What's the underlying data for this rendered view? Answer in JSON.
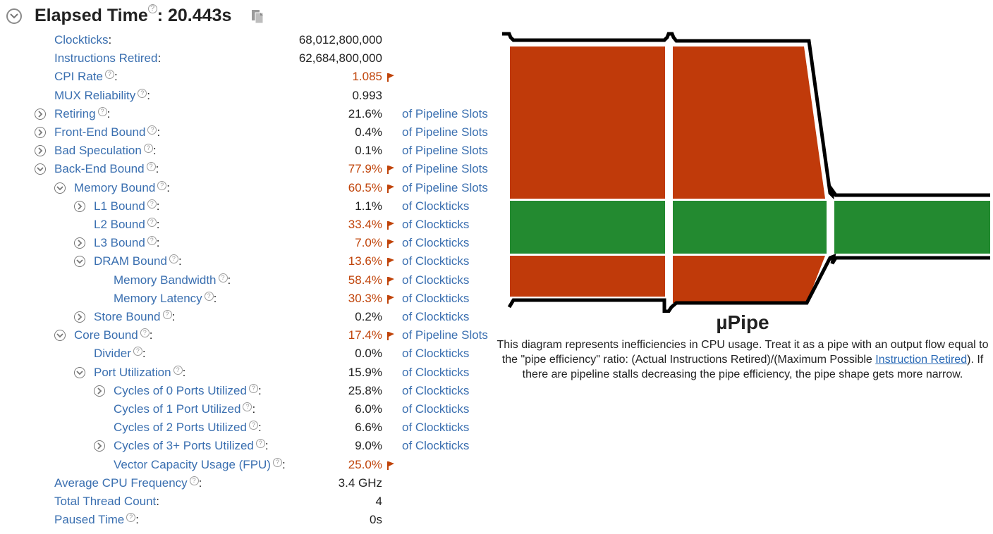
{
  "header": {
    "title": "Elapsed Time",
    "help_glyph": "?",
    "value": ": 20.443s"
  },
  "rows": [
    {
      "label": "Clockticks",
      "help": false,
      "value": "68,012,800,000",
      "flag": false,
      "unit": "",
      "indent": 0,
      "expander": "none"
    },
    {
      "label": "Instructions Retired",
      "help": false,
      "value": "62,684,800,000",
      "flag": false,
      "unit": "",
      "indent": 0,
      "expander": "none"
    },
    {
      "label": "CPI Rate",
      "help": true,
      "value": "1.085",
      "flag": true,
      "unit": "",
      "indent": 0,
      "expander": "none"
    },
    {
      "label": "MUX Reliability",
      "help": true,
      "value": "0.993",
      "flag": false,
      "unit": "",
      "indent": 0,
      "expander": "none"
    },
    {
      "label": "Retiring",
      "help": true,
      "value": "21.6%",
      "flag": false,
      "unit": "of Pipeline Slots",
      "indent": 0,
      "expander": "right"
    },
    {
      "label": "Front-End Bound",
      "help": true,
      "value": "0.4%",
      "flag": false,
      "unit": "of Pipeline Slots",
      "indent": 0,
      "expander": "right"
    },
    {
      "label": "Bad Speculation",
      "help": true,
      "value": "0.1%",
      "flag": false,
      "unit": "of Pipeline Slots",
      "indent": 0,
      "expander": "right"
    },
    {
      "label": "Back-End Bound",
      "help": true,
      "value": "77.9%",
      "flag": true,
      "unit": "of Pipeline Slots",
      "indent": 0,
      "expander": "down"
    },
    {
      "label": "Memory Bound",
      "help": true,
      "value": "60.5%",
      "flag": true,
      "unit": "of Pipeline Slots",
      "indent": 1,
      "expander": "down"
    },
    {
      "label": "L1 Bound",
      "help": true,
      "value": "1.1%",
      "flag": false,
      "unit": "of Clockticks",
      "indent": 2,
      "expander": "right"
    },
    {
      "label": "L2 Bound",
      "help": true,
      "value": "33.4%",
      "flag": true,
      "unit": "of Clockticks",
      "indent": 2,
      "expander": "none"
    },
    {
      "label": "L3 Bound",
      "help": true,
      "value": "7.0%",
      "flag": true,
      "unit": "of Clockticks",
      "indent": 2,
      "expander": "right"
    },
    {
      "label": "DRAM Bound",
      "help": true,
      "value": "13.6%",
      "flag": true,
      "unit": "of Clockticks",
      "indent": 2,
      "expander": "down"
    },
    {
      "label": "Memory Bandwidth",
      "help": true,
      "value": "58.4%",
      "flag": true,
      "unit": "of Clockticks",
      "indent": 3,
      "expander": "none"
    },
    {
      "label": "Memory Latency",
      "help": true,
      "value": "30.3%",
      "flag": true,
      "unit": "of Clockticks",
      "indent": 3,
      "expander": "none"
    },
    {
      "label": "Store Bound",
      "help": true,
      "value": "0.2%",
      "flag": false,
      "unit": "of Clockticks",
      "indent": 2,
      "expander": "right"
    },
    {
      "label": "Core Bound",
      "help": true,
      "value": "17.4%",
      "flag": true,
      "unit": "of Pipeline Slots",
      "indent": 1,
      "expander": "down"
    },
    {
      "label": "Divider",
      "help": true,
      "value": "0.0%",
      "flag": false,
      "unit": "of Clockticks",
      "indent": 2,
      "expander": "none"
    },
    {
      "label": "Port Utilization",
      "help": true,
      "value": "15.9%",
      "flag": false,
      "unit": "of Clockticks",
      "indent": 2,
      "expander": "down"
    },
    {
      "label": "Cycles of 0 Ports Utilized",
      "help": true,
      "value": "25.8%",
      "flag": false,
      "unit": "of Clockticks",
      "indent": 3,
      "expander": "right"
    },
    {
      "label": "Cycles of 1 Port Utilized",
      "help": true,
      "value": "6.0%",
      "flag": false,
      "unit": "of Clockticks",
      "indent": 3,
      "expander": "none"
    },
    {
      "label": "Cycles of 2 Ports Utilized",
      "help": true,
      "value": "6.6%",
      "flag": false,
      "unit": "of Clockticks",
      "indent": 3,
      "expander": "none"
    },
    {
      "label": "Cycles of 3+ Ports Utilized",
      "help": true,
      "value": "9.0%",
      "flag": false,
      "unit": "of Clockticks",
      "indent": 3,
      "expander": "right"
    },
    {
      "label": "Vector Capacity Usage (FPU)",
      "help": true,
      "value": "25.0%",
      "flag": true,
      "unit": "",
      "indent": 3,
      "expander": "none"
    },
    {
      "label": "Average CPU Frequency",
      "help": true,
      "value": "3.4 GHz",
      "flag": false,
      "unit": "",
      "indent": 0,
      "expander": "none"
    },
    {
      "label": "Total Thread Count",
      "help": false,
      "value": "4",
      "flag": false,
      "unit": "",
      "indent": 0,
      "expander": "none"
    },
    {
      "label": "Paused Time",
      "help": true,
      "value": "0s",
      "flag": false,
      "unit": "",
      "indent": 0,
      "expander": "none"
    }
  ],
  "pipe": {
    "title": "µPipe",
    "desc_before": "This diagram represents inefficiencies in CPU usage. Treat it as a pipe with an output flow equal to the \"pipe efficiency\" ratio: (Actual Instructions Retired)/(Maximum Possible ",
    "desc_link": "Instruction Retired",
    "desc_after": "). If there are pipeline stalls decreasing the pipe efficiency, the pipe shape gets more narrow.",
    "colors": {
      "stall": "#c03a0a",
      "retired": "#238a30",
      "outline": "#000000"
    }
  },
  "colors": {
    "link": "#3a6fb0",
    "flagged": "#c0440a"
  }
}
